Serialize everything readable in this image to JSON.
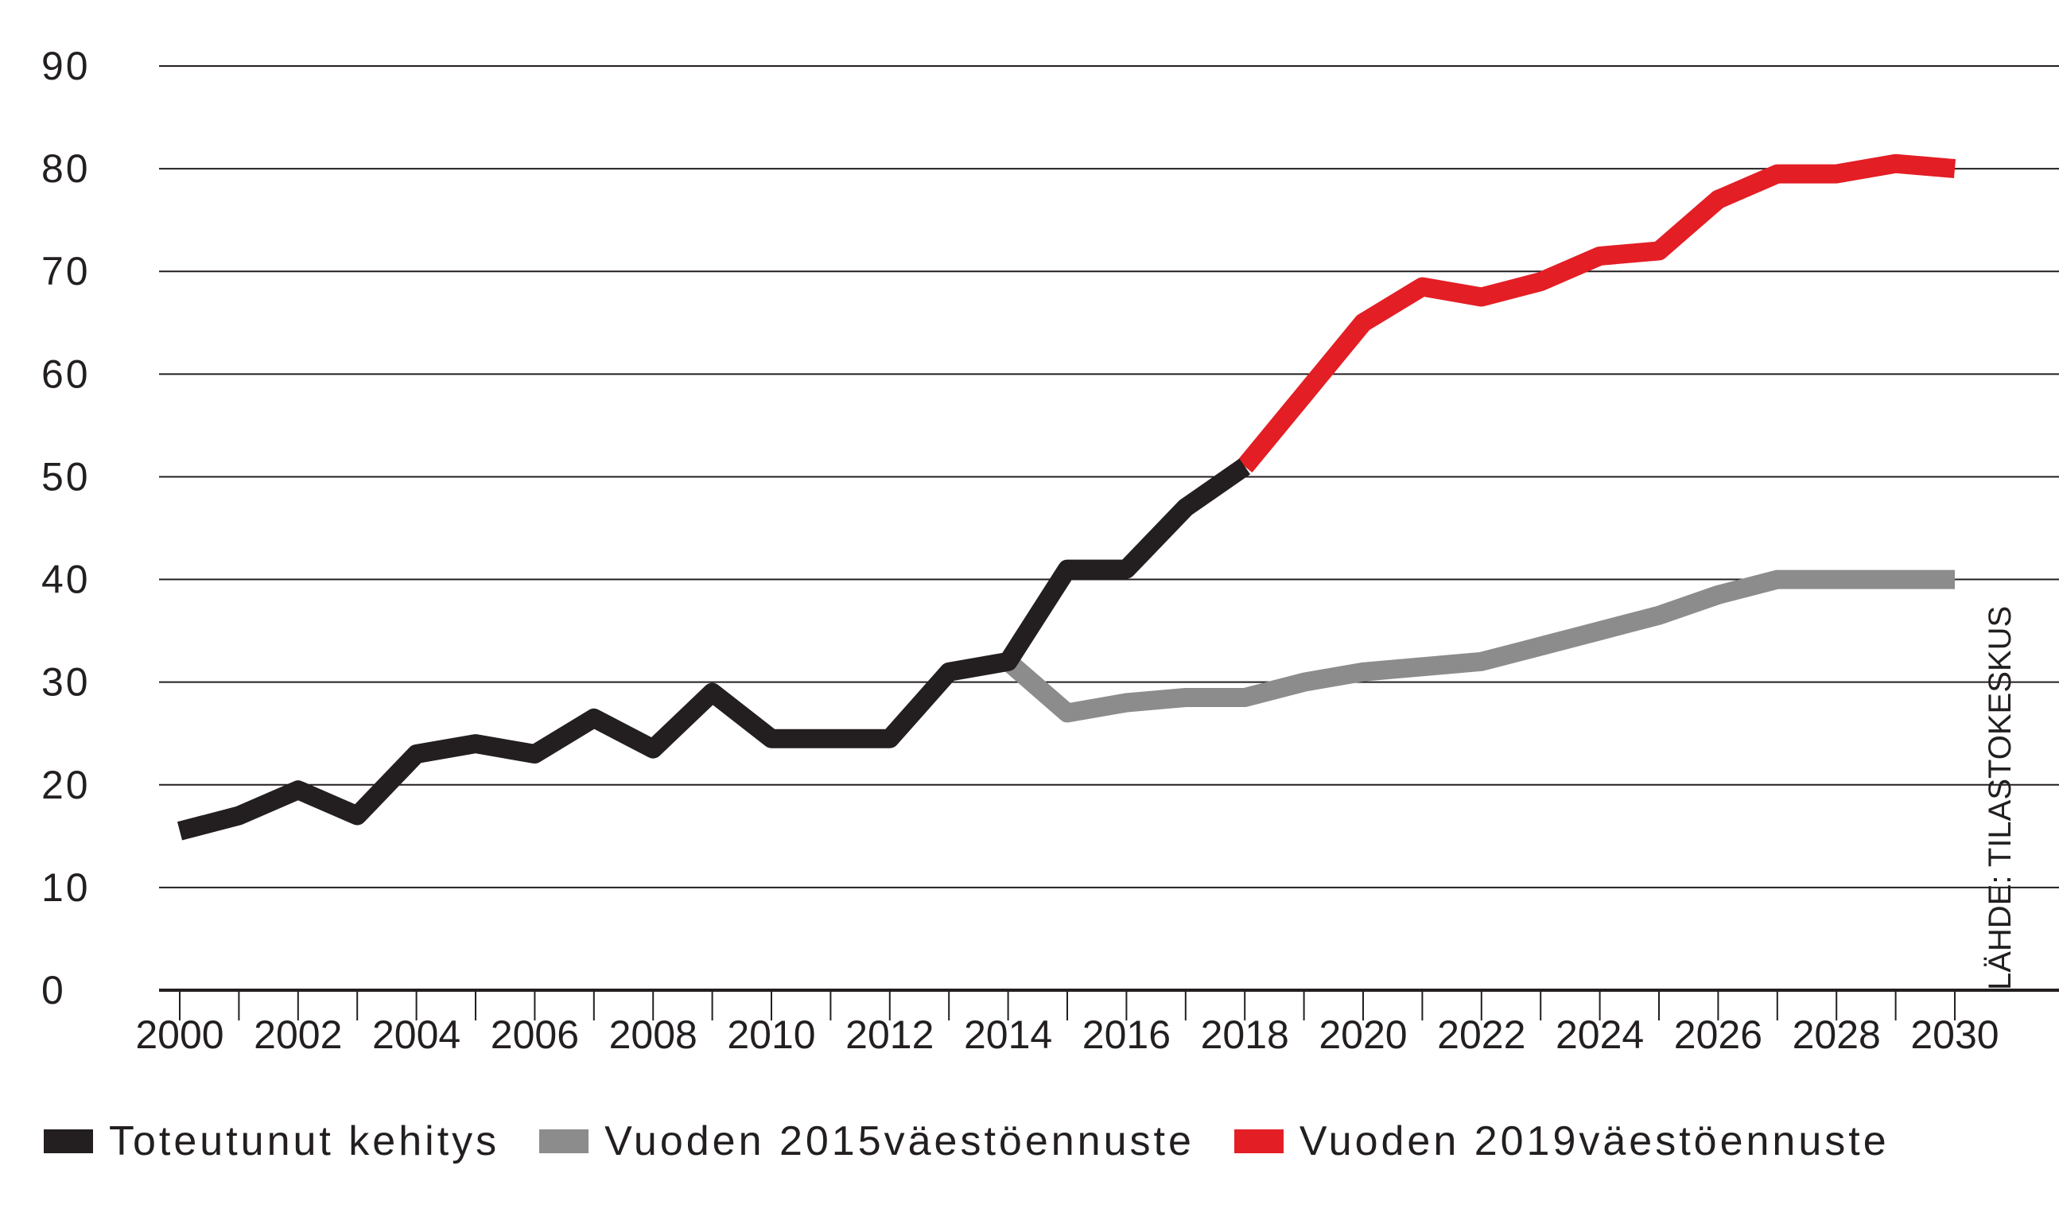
{
  "chart_data": {
    "type": "line",
    "x": [
      2000,
      2001,
      2002,
      2003,
      2004,
      2005,
      2006,
      2007,
      2008,
      2009,
      2010,
      2011,
      2012,
      2013,
      2014,
      2015,
      2016,
      2017,
      2018,
      2019,
      2020,
      2021,
      2022,
      2023,
      2024,
      2025,
      2026,
      2027,
      2028,
      2029,
      2030
    ],
    "series": [
      {
        "name": "Toteutunut kehitys",
        "color": "#231f20",
        "points": [
          [
            2000,
            15.5
          ],
          [
            2001,
            17
          ],
          [
            2002,
            19.5
          ],
          [
            2003,
            17
          ],
          [
            2004,
            23
          ],
          [
            2005,
            24
          ],
          [
            2006,
            23
          ],
          [
            2007,
            26.5
          ],
          [
            2008,
            23.5
          ],
          [
            2009,
            29
          ],
          [
            2010,
            24.5
          ],
          [
            2011,
            24.5
          ],
          [
            2012,
            24.5
          ],
          [
            2013,
            31
          ],
          [
            2014,
            32
          ],
          [
            2015,
            41
          ],
          [
            2016,
            41
          ],
          [
            2017,
            47
          ],
          [
            2018,
            51
          ]
        ]
      },
      {
        "name": "Vuoden 2015väestöennuste",
        "color": "#8c8c8c",
        "points": [
          [
            2014,
            32
          ],
          [
            2015,
            27
          ],
          [
            2016,
            28
          ],
          [
            2017,
            28.5
          ],
          [
            2018,
            28.5
          ],
          [
            2019,
            30
          ],
          [
            2020,
            31
          ],
          [
            2021,
            31.5
          ],
          [
            2022,
            32
          ],
          [
            2023,
            33.5
          ],
          [
            2024,
            35
          ],
          [
            2025,
            36.5
          ],
          [
            2026,
            38.5
          ],
          [
            2027,
            40
          ],
          [
            2028,
            40
          ],
          [
            2029,
            40
          ],
          [
            2030,
            40
          ]
        ]
      },
      {
        "name": "Vuoden 2019väestöennuste",
        "color": "#e31e24",
        "points": [
          [
            2018,
            51
          ],
          [
            2019,
            58
          ],
          [
            2020,
            65
          ],
          [
            2021,
            68.5
          ],
          [
            2022,
            67.5
          ],
          [
            2023,
            69
          ],
          [
            2024,
            71.5
          ],
          [
            2025,
            72
          ],
          [
            2026,
            77
          ],
          [
            2027,
            79.5
          ],
          [
            2028,
            79.5
          ],
          [
            2029,
            80.5
          ],
          [
            2030,
            80
          ]
        ]
      }
    ],
    "ylim": [
      0,
      90
    ],
    "yticks": [
      "0",
      "10",
      "20",
      "30",
      "40",
      "50",
      "60",
      "70",
      "80",
      "90"
    ],
    "xtick_labels": [
      "2000",
      "2002",
      "2004",
      "2006",
      "2008",
      "2010",
      "2012",
      "2014",
      "2016",
      "2018",
      "2020",
      "2022",
      "2024",
      "2026",
      "2028",
      "2030"
    ],
    "grid": "horizontal",
    "legend_position": "bottom",
    "source_note": "LÄHDE: TILASTOKESKUS"
  }
}
